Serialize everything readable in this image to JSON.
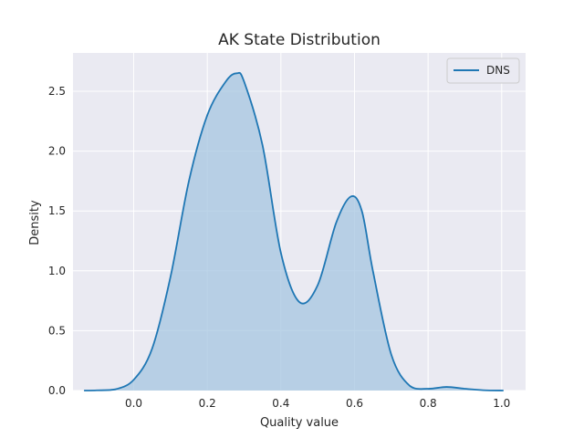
{
  "chart_data": {
    "type": "area",
    "title": "AK State Distribution",
    "xlabel": "Quality value",
    "ylabel": "Density",
    "xlim": [
      -0.165,
      1.065
    ],
    "ylim": [
      0,
      2.82
    ],
    "xticks": [
      0.0,
      0.2,
      0.4,
      0.6,
      0.8,
      1.0
    ],
    "xtick_labels": [
      "0.0",
      "0.2",
      "0.4",
      "0.6",
      "0.8",
      "1.0"
    ],
    "yticks": [
      0.0,
      0.5,
      1.0,
      1.5,
      2.0,
      2.5
    ],
    "ytick_labels": [
      "0.0",
      "0.5",
      "1.0",
      "1.5",
      "2.0",
      "2.5"
    ],
    "grid": true,
    "legend_position": "top-right",
    "series": [
      {
        "name": "DNS",
        "color": "#1f77b4",
        "fill_color": "#a6c6e0",
        "x": [
          -0.135,
          -0.1,
          -0.05,
          0.0,
          0.05,
          0.1,
          0.15,
          0.2,
          0.25,
          0.28,
          0.3,
          0.35,
          0.4,
          0.45,
          0.5,
          0.55,
          0.59,
          0.62,
          0.65,
          0.7,
          0.75,
          0.8,
          0.85,
          0.9,
          0.95,
          1.005
        ],
        "y": [
          0.0,
          0.002,
          0.01,
          0.09,
          0.35,
          0.95,
          1.75,
          2.3,
          2.58,
          2.65,
          2.58,
          2.05,
          1.15,
          0.74,
          0.88,
          1.4,
          1.62,
          1.5,
          1.0,
          0.3,
          0.04,
          0.015,
          0.03,
          0.015,
          0.003,
          0.0
        ]
      }
    ]
  }
}
